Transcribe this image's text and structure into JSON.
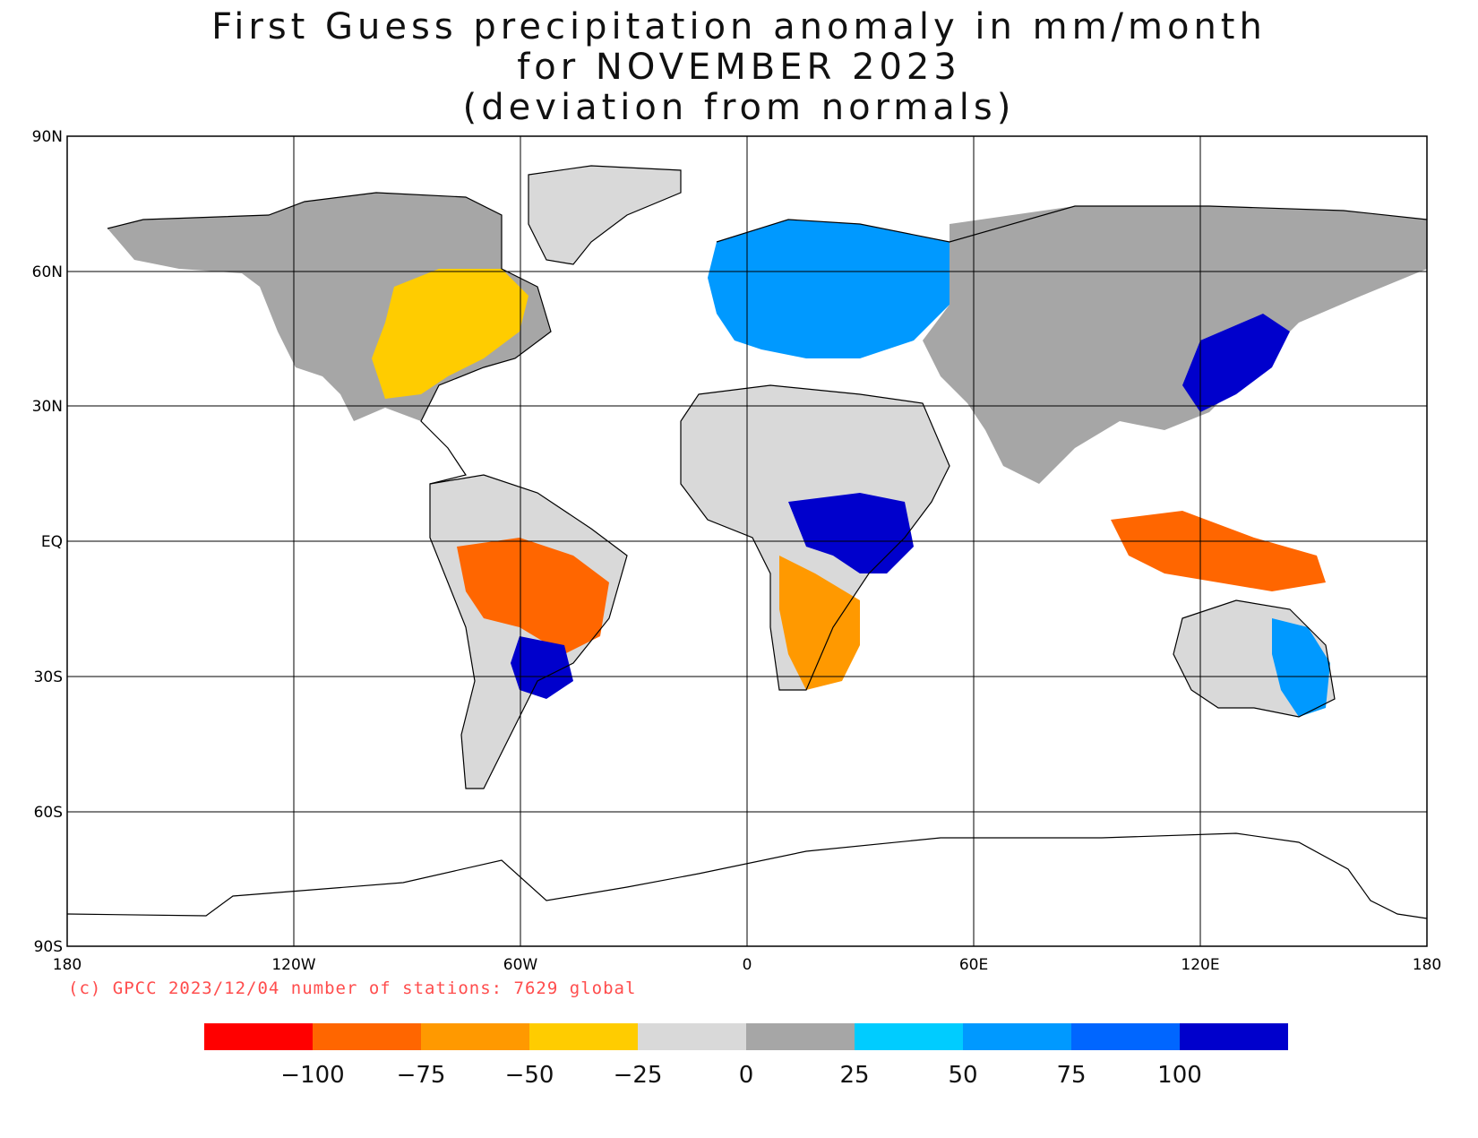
{
  "title": {
    "line1": "First Guess precipitation anomaly in mm/month",
    "line2": "for NOVEMBER 2023",
    "line3": "(deviation from normals)"
  },
  "axes": {
    "lat_labels": [
      "90N",
      "60N",
      "30N",
      "EQ",
      "30S",
      "60S",
      "90S"
    ],
    "lon_labels": [
      "180",
      "120W",
      "60W",
      "0",
      "60E",
      "120E",
      "180"
    ]
  },
  "credit": "(c) GPCC 2023/12/04 number of stations: 7629 global",
  "legend": {
    "colors": [
      "#ff0000",
      "#ff6600",
      "#ff9900",
      "#ffcc00",
      "#d9d9d9",
      "#a6a6a6",
      "#00ccff",
      "#0099ff",
      "#0066ff",
      "#0000cc"
    ],
    "tick_labels": [
      "-100",
      "-75",
      "-50",
      "-25",
      "0",
      "25",
      "50",
      "75",
      "100"
    ]
  },
  "regions": [
    {
      "name": "north-america-east",
      "color": "#ffcc00"
    },
    {
      "name": "canada-arctic",
      "color": "#a6a6a6"
    },
    {
      "name": "greenland",
      "color": "#d9d9d9"
    },
    {
      "name": "south-america-core",
      "color": "#ff6600"
    },
    {
      "name": "south-brazil",
      "color": "#0000cc"
    },
    {
      "name": "europe",
      "color": "#0099ff"
    },
    {
      "name": "central-africa",
      "color": "#0000cc"
    },
    {
      "name": "southern-africa",
      "color": "#ff9900"
    },
    {
      "name": "sahara",
      "color": "#d9d9d9"
    },
    {
      "name": "asia",
      "color": "#a6a6a6"
    },
    {
      "name": "east-asia-coast",
      "color": "#0000cc"
    },
    {
      "name": "maritime-continent",
      "color": "#ff6600"
    },
    {
      "name": "australia",
      "color": "#d9d9d9"
    },
    {
      "name": "east-australia",
      "color": "#0099ff"
    }
  ]
}
